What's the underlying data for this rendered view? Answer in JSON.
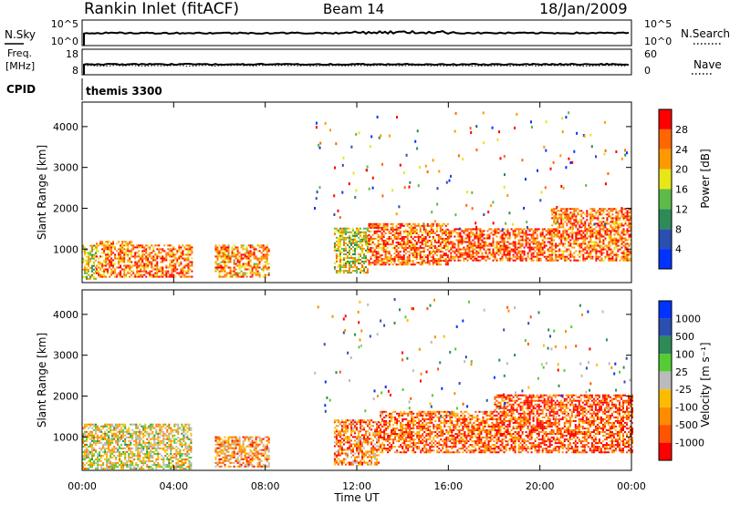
{
  "header": {
    "title": "Rankin Inlet (fitACF)",
    "beam": "Beam 14",
    "date": "18/Jan/2009"
  },
  "colors": {
    "power_scale": [
      "#0033ff",
      "#2a4fb0",
      "#2e8b57",
      "#5dbb4a",
      "#e6e619",
      "#ff9900",
      "#ff6600",
      "#ff0000"
    ],
    "velocity_scale": [
      "#ff0000",
      "#ff5500",
      "#ff8c00",
      "#ffbb00",
      "#bbbbbb",
      "#55cc33",
      "#2e8b57",
      "#2a4fb0",
      "#0033ff"
    ]
  },
  "nsky_panel": {
    "left_label": "N.Sky",
    "right_label": "N.Search",
    "left_ticks": [
      "10^5",
      "10^0"
    ],
    "right_ticks": [
      "10^5",
      "10^0"
    ]
  },
  "freq_panel": {
    "left_label_line1": "Freq.",
    "left_label_line2": "[MHz]",
    "left_ticks": [
      "18",
      "8"
    ],
    "right_label": "Nave",
    "right_ticks": [
      "60",
      "0"
    ]
  },
  "cpid_panel": {
    "label": "CPID",
    "value": "themis 3300"
  },
  "chart_data": [
    {
      "type": "heatmap",
      "name": "power",
      "ylabel": "Slant Range [km]",
      "ylim": [
        180,
        4600
      ],
      "yticks": [
        1000,
        2000,
        3000,
        4000
      ],
      "xlim": [
        0,
        24
      ],
      "x_tick_labels": [
        "00:00",
        "04:00",
        "08:00",
        "12:00",
        "16:00",
        "20:00",
        "00:00"
      ],
      "colorbar_label": "Power [dB]",
      "colorbar_ticks": [
        "28",
        "24",
        "20",
        "16",
        "12",
        "8",
        "4"
      ],
      "regions": [
        {
          "t0": 0.0,
          "t1": 0.6,
          "r0": 250,
          "r1": 1100,
          "level": 0.55
        },
        {
          "t0": 0.6,
          "t1": 2.2,
          "r0": 300,
          "r1": 1200,
          "level": 0.75
        },
        {
          "t0": 2.2,
          "t1": 4.8,
          "r0": 300,
          "r1": 1100,
          "level": 0.8
        },
        {
          "t0": 5.8,
          "t1": 8.2,
          "r0": 300,
          "r1": 1100,
          "level": 0.7
        },
        {
          "t0": 11.0,
          "t1": 12.5,
          "r0": 400,
          "r1": 1500,
          "level": 0.55
        },
        {
          "t0": 12.5,
          "t1": 16.0,
          "r0": 600,
          "r1": 1600,
          "level": 0.8
        },
        {
          "t0": 16.0,
          "t1": 20.5,
          "r0": 700,
          "r1": 1500,
          "level": 0.85
        },
        {
          "t0": 20.5,
          "t1": 24.0,
          "r0": 700,
          "r1": 2000,
          "level": 0.8
        }
      ]
    },
    {
      "type": "heatmap",
      "name": "velocity",
      "ylabel": "Slant Range [km]",
      "ylim": [
        180,
        4600
      ],
      "yticks": [
        1000,
        2000,
        3000,
        4000
      ],
      "xlim": [
        0,
        24
      ],
      "x_tick_labels": [
        "00:00",
        "04:00",
        "08:00",
        "12:00",
        "16:00",
        "20:00",
        "00:00"
      ],
      "xlabel": "Time UT",
      "colorbar_label": "Velocity [m s⁻¹]",
      "colorbar_ticks": [
        "1000",
        "500",
        "100",
        "25",
        "-25",
        "-100",
        "-500",
        "-1000"
      ],
      "regions": [
        {
          "t0": 0.0,
          "t1": 4.8,
          "r0": 200,
          "r1": 1300,
          "level": 0.45
        },
        {
          "t0": 5.8,
          "t1": 8.2,
          "r0": 250,
          "r1": 1000,
          "level": 0.3
        },
        {
          "t0": 11.0,
          "t1": 13.0,
          "r0": 300,
          "r1": 1400,
          "level": 0.25
        },
        {
          "t0": 13.0,
          "t1": 18.0,
          "r0": 600,
          "r1": 1600,
          "level": 0.2
        },
        {
          "t0": 18.0,
          "t1": 24.0,
          "r0": 600,
          "r1": 2000,
          "level": 0.15
        }
      ]
    }
  ]
}
